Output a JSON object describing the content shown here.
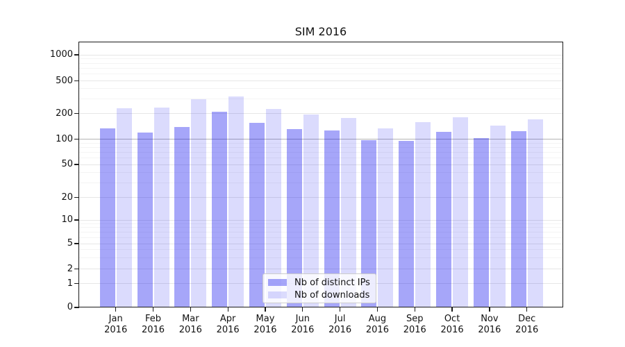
{
  "title": "SIM 2016",
  "legend": {
    "items": [
      {
        "id": "ips",
        "label": "Nb of distinct IPs"
      },
      {
        "id": "downloads",
        "label": "Nb of downloads"
      }
    ]
  },
  "axes": {
    "y_tick_labels": [
      "0",
      "1",
      "2",
      "5",
      "10",
      "20",
      "50",
      "100",
      "200",
      "500",
      "1000"
    ],
    "x_months": [
      "Jan",
      "Feb",
      "Mar",
      "Apr",
      "May",
      "Jun",
      "Jul",
      "Aug",
      "Sep",
      "Oct",
      "Nov",
      "Dec"
    ],
    "x_year": "2016"
  },
  "colors": {
    "ips_bar": "rgba(0,0,238,0.35)",
    "downloads_bar": "rgba(0,0,238,0.14)",
    "grid_major": "#e6e6e6",
    "grid_minor": "#f4f4f4",
    "grid_hundred": "#b4b4b4",
    "spine": "#1a1a1a"
  },
  "chart_data": {
    "type": "bar",
    "title": "SIM 2016",
    "categories": [
      "Jan 2016",
      "Feb 2016",
      "Mar 2016",
      "Apr 2016",
      "May 2016",
      "Jun 2016",
      "Jul 2016",
      "Aug 2016",
      "Sep 2016",
      "Oct 2016",
      "Nov 2016",
      "Dec 2016"
    ],
    "series": [
      {
        "name": "Nb of distinct IPs",
        "values": [
          133,
          119,
          140,
          210,
          154,
          130,
          126,
          97,
          95,
          122,
          102,
          123
        ]
      },
      {
        "name": "Nb of downloads",
        "values": [
          230,
          236,
          298,
          324,
          229,
          195,
          176,
          133,
          157,
          180,
          144,
          172
        ]
      }
    ],
    "xlabel": "",
    "ylabel": "",
    "yscale": "symlog",
    "y_ticks": [
      0,
      1,
      2,
      5,
      10,
      20,
      50,
      100,
      200,
      500,
      1000
    ],
    "y_minor_ticks": [
      3,
      4,
      6,
      7,
      8,
      9,
      30,
      40,
      60,
      70,
      80,
      90,
      300,
      400,
      600,
      700,
      800,
      900
    ],
    "ylim": [
      0,
      1400
    ],
    "grid": true,
    "reference_line": 100,
    "legend_position": "lower center"
  }
}
